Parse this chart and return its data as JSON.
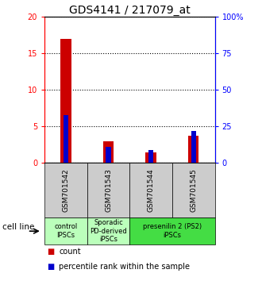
{
  "title": "GDS4141 / 217079_at",
  "samples": [
    "GSM701542",
    "GSM701543",
    "GSM701544",
    "GSM701545"
  ],
  "count_values": [
    17,
    3,
    1.5,
    3.7
  ],
  "percentile_values": [
    33,
    11,
    9,
    22
  ],
  "ylim_left": [
    0,
    20
  ],
  "ylim_right": [
    0,
    100
  ],
  "yticks_left": [
    0,
    5,
    10,
    15,
    20
  ],
  "yticks_right": [
    0,
    25,
    50,
    75,
    100
  ],
  "ytick_labels_left": [
    "0",
    "5",
    "10",
    "15",
    "20"
  ],
  "ytick_labels_right": [
    "0",
    "25",
    "50",
    "75",
    "100%"
  ],
  "bar_color_count": "#cc0000",
  "bar_color_percentile": "#0000cc",
  "sample_box_color": "#cccccc",
  "group_info": [
    {
      "label": "control\nIPSCs",
      "start": 0,
      "end": 0,
      "color": "#bbffbb"
    },
    {
      "label": "Sporadic\nPD-derived\niPSCs",
      "start": 1,
      "end": 1,
      "color": "#bbffbb"
    },
    {
      "label": "presenilin 2 (PS2)\niPSCs",
      "start": 2,
      "end": 3,
      "color": "#44dd44"
    }
  ],
  "cell_line_label": "cell line",
  "legend_count": "count",
  "legend_percentile": "percentile rank within the sample",
  "title_fontsize": 10,
  "tick_fontsize": 7,
  "sample_fontsize": 6.5,
  "group_fontsize": 6,
  "legend_fontsize": 7
}
